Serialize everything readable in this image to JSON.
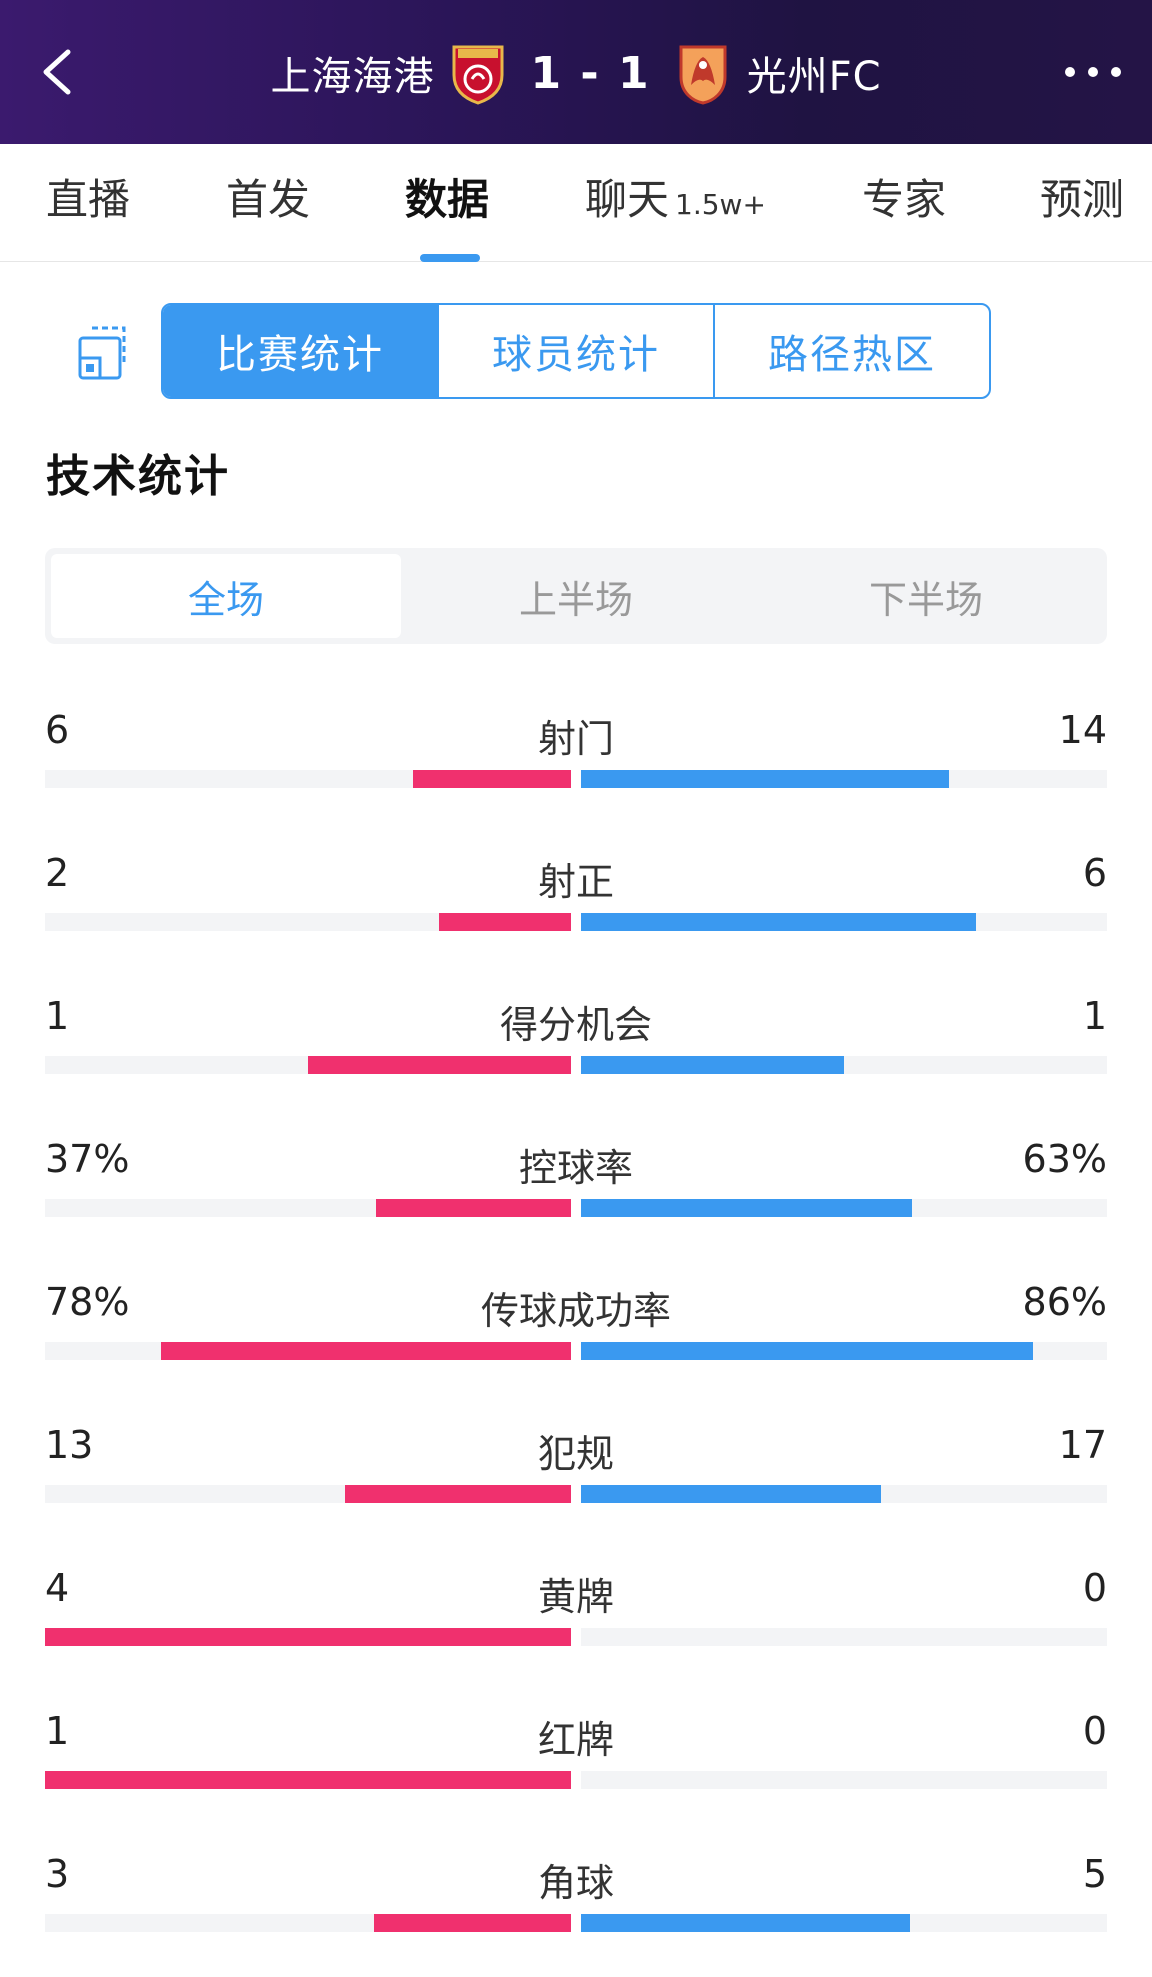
{
  "header": {
    "home_team": "上海海港",
    "score": "1 - 1",
    "away_team": "光州FC",
    "back_icon": "chevron-left-icon",
    "more_icon": "more-horizontal-icon",
    "home_badge_icon": "shanghai-port-crest-icon",
    "away_badge_icon": "gwangju-fc-crest-icon"
  },
  "tabs": [
    {
      "label": "直播",
      "sub": ""
    },
    {
      "label": "首发",
      "sub": ""
    },
    {
      "label": "数据",
      "sub": ""
    },
    {
      "label": "聊天",
      "sub": "1.5w+"
    },
    {
      "label": "专家",
      "sub": ""
    },
    {
      "label": "预测",
      "sub": ""
    }
  ],
  "active_tab": "数据",
  "segment": {
    "icon": "layout-switch-icon",
    "items": [
      "比赛统计",
      "球员统计",
      "路径热区"
    ],
    "active": "比赛统计"
  },
  "section_title": "技术统计",
  "period": {
    "items": [
      "全场",
      "上半场",
      "下半场"
    ],
    "active": "全场"
  },
  "stats": [
    {
      "label": "射门",
      "home": "6",
      "away": "14",
      "home_frac": 0.3,
      "away_frac": 0.7
    },
    {
      "label": "射正",
      "home": "2",
      "away": "6",
      "home_frac": 0.25,
      "away_frac": 0.75
    },
    {
      "label": "得分机会",
      "home": "1",
      "away": "1",
      "home_frac": 0.5,
      "away_frac": 0.5
    },
    {
      "label": "控球率",
      "home": "37%",
      "away": "63%",
      "home_frac": 0.37,
      "away_frac": 0.63
    },
    {
      "label": "传球成功率",
      "home": "78%",
      "away": "86%",
      "home_frac": 0.78,
      "away_frac": 0.86
    },
    {
      "label": "犯规",
      "home": "13",
      "away": "17",
      "home_frac": 0.43,
      "away_frac": 0.57
    },
    {
      "label": "黄牌",
      "home": "4",
      "away": "0",
      "home_frac": 1.0,
      "away_frac": 0.0
    },
    {
      "label": "红牌",
      "home": "1",
      "away": "0",
      "home_frac": 1.0,
      "away_frac": 0.0
    },
    {
      "label": "角球",
      "home": "3",
      "away": "5",
      "home_frac": 0.375,
      "away_frac": 0.625
    }
  ],
  "colors": {
    "home_bar": "#f0306e",
    "away_bar": "#3a99f0",
    "accent": "#3a99f0",
    "header_bg": "#2a1557"
  }
}
